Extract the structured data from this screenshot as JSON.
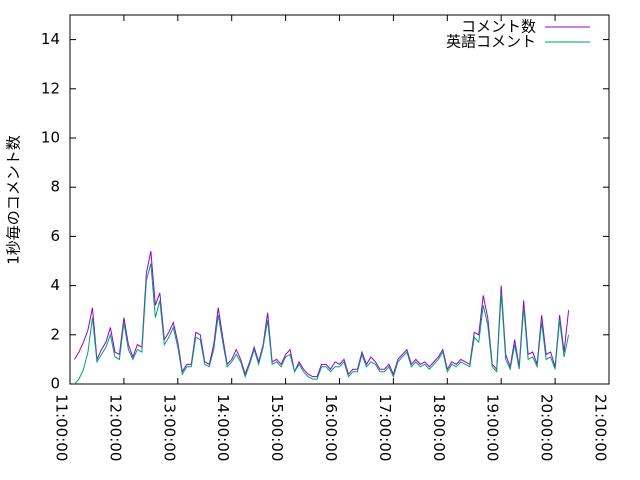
{
  "chart_data": {
    "type": "line",
    "ylabel": "1秒毎のコメント数",
    "x": [
      "11:05:00",
      "11:10:00",
      "11:15:00",
      "11:20:00",
      "11:25:00",
      "11:30:00",
      "11:35:00",
      "11:40:00",
      "11:45:00",
      "11:50:00",
      "11:55:00",
      "12:00:00",
      "12:05:00",
      "12:10:00",
      "12:15:00",
      "12:20:00",
      "12:25:00",
      "12:30:00",
      "12:35:00",
      "12:40:00",
      "12:45:00",
      "12:50:00",
      "12:55:00",
      "13:00:00",
      "13:05:00",
      "13:10:00",
      "13:15:00",
      "13:20:00",
      "13:25:00",
      "13:30:00",
      "13:35:00",
      "13:40:00",
      "13:45:00",
      "13:50:00",
      "13:55:00",
      "14:00:00",
      "14:05:00",
      "14:10:00",
      "14:15:00",
      "14:20:00",
      "14:25:00",
      "14:30:00",
      "14:35:00",
      "14:40:00",
      "14:45:00",
      "14:50:00",
      "14:55:00",
      "15:00:00",
      "15:05:00",
      "15:10:00",
      "15:15:00",
      "15:20:00",
      "15:25:00",
      "15:30:00",
      "15:35:00",
      "15:40:00",
      "15:45:00",
      "15:50:00",
      "15:55:00",
      "16:00:00",
      "16:05:00",
      "16:10:00",
      "16:15:00",
      "16:20:00",
      "16:25:00",
      "16:30:00",
      "16:35:00",
      "16:40:00",
      "16:45:00",
      "16:50:00",
      "16:55:00",
      "17:00:00",
      "17:05:00",
      "17:10:00",
      "17:15:00",
      "17:20:00",
      "17:25:00",
      "17:30:00",
      "17:35:00",
      "17:40:00",
      "17:45:00",
      "17:50:00",
      "17:55:00",
      "18:00:00",
      "18:05:00",
      "18:10:00",
      "18:15:00",
      "18:20:00",
      "18:25:00",
      "18:30:00",
      "18:35:00",
      "18:40:00",
      "18:45:00",
      "18:50:00",
      "18:55:00",
      "19:00:00",
      "19:05:00",
      "19:10:00",
      "19:15:00",
      "19:20:00",
      "19:25:00",
      "19:30:00",
      "19:35:00",
      "19:40:00",
      "19:45:00",
      "19:50:00",
      "19:55:00",
      "20:00:00",
      "20:05:00",
      "20:10:00",
      "20:15:00"
    ],
    "series": [
      {
        "name": "コメント数",
        "color": "#9400d3",
        "values": [
          1.0,
          1.3,
          1.7,
          2.2,
          3.1,
          1.0,
          1.4,
          1.7,
          2.3,
          1.3,
          1.2,
          2.7,
          1.6,
          1.1,
          1.6,
          1.5,
          4.5,
          5.4,
          3.2,
          3.7,
          1.8,
          2.1,
          2.5,
          1.7,
          0.5,
          0.8,
          0.8,
          2.1,
          2.0,
          0.9,
          0.8,
          1.6,
          3.1,
          1.9,
          0.8,
          1.0,
          1.4,
          1.0,
          0.4,
          0.9,
          1.5,
          0.9,
          1.6,
          2.9,
          0.9,
          1.0,
          0.8,
          1.2,
          1.4,
          0.5,
          0.9,
          0.6,
          0.4,
          0.3,
          0.3,
          0.8,
          0.8,
          0.6,
          0.9,
          0.8,
          1.0,
          0.4,
          0.6,
          0.6,
          1.3,
          0.8,
          1.1,
          0.9,
          0.6,
          0.6,
          0.8,
          0.4,
          1.0,
          1.2,
          1.4,
          0.8,
          1.0,
          0.8,
          0.9,
          0.7,
          0.9,
          1.1,
          1.4,
          0.6,
          0.9,
          0.8,
          1.0,
          0.9,
          0.8,
          2.1,
          2.0,
          3.6,
          2.7,
          0.8,
          0.6,
          4.0,
          1.2,
          0.7,
          1.8,
          0.7,
          3.4,
          1.2,
          1.3,
          0.8,
          2.8,
          1.2,
          1.3,
          0.7,
          2.8,
          1.3,
          3.0
        ]
      },
      {
        "name": "英語コメント",
        "color": "#009e73",
        "values": [
          0,
          0.2,
          0.6,
          1.3,
          2.7,
          0.9,
          1.2,
          1.5,
          2.0,
          1.1,
          1.0,
          2.5,
          1.4,
          1.0,
          1.4,
          1.3,
          4.2,
          4.9,
          2.7,
          3.4,
          1.6,
          1.9,
          2.3,
          1.5,
          0.4,
          0.7,
          0.7,
          1.9,
          1.8,
          0.8,
          0.7,
          1.4,
          2.8,
          1.7,
          0.7,
          0.9,
          1.2,
          0.9,
          0.3,
          0.8,
          1.4,
          0.8,
          1.5,
          2.6,
          0.8,
          0.9,
          0.7,
          1.1,
          1.2,
          0.5,
          0.8,
          0.5,
          0.3,
          0.2,
          0.2,
          0.7,
          0.7,
          0.5,
          0.7,
          0.7,
          0.9,
          0.3,
          0.5,
          0.5,
          1.2,
          0.7,
          0.9,
          0.8,
          0.5,
          0.5,
          0.7,
          0.3,
          0.9,
          1.1,
          1.3,
          0.7,
          0.9,
          0.7,
          0.8,
          0.6,
          0.8,
          1.0,
          1.3,
          0.5,
          0.8,
          0.7,
          0.9,
          0.8,
          0.7,
          1.9,
          1.7,
          3.2,
          2.4,
          0.7,
          0.5,
          3.7,
          1.0,
          0.6,
          1.6,
          0.6,
          3.1,
          1.0,
          1.1,
          0.7,
          2.5,
          1.0,
          1.1,
          0.6,
          2.6,
          1.1,
          2.0
        ]
      }
    ],
    "xlim": [
      "11:00:00",
      "21:00:00"
    ],
    "xticks": [
      "11:00:00",
      "12:00:00",
      "13:00:00",
      "14:00:00",
      "15:00:00",
      "16:00:00",
      "17:00:00",
      "18:00:00",
      "19:00:00",
      "20:00:00",
      "21:00:00"
    ],
    "ylim": [
      0,
      15
    ],
    "yticks": [
      0,
      2,
      4,
      6,
      8,
      10,
      12,
      14
    ],
    "legend": "top-right"
  }
}
